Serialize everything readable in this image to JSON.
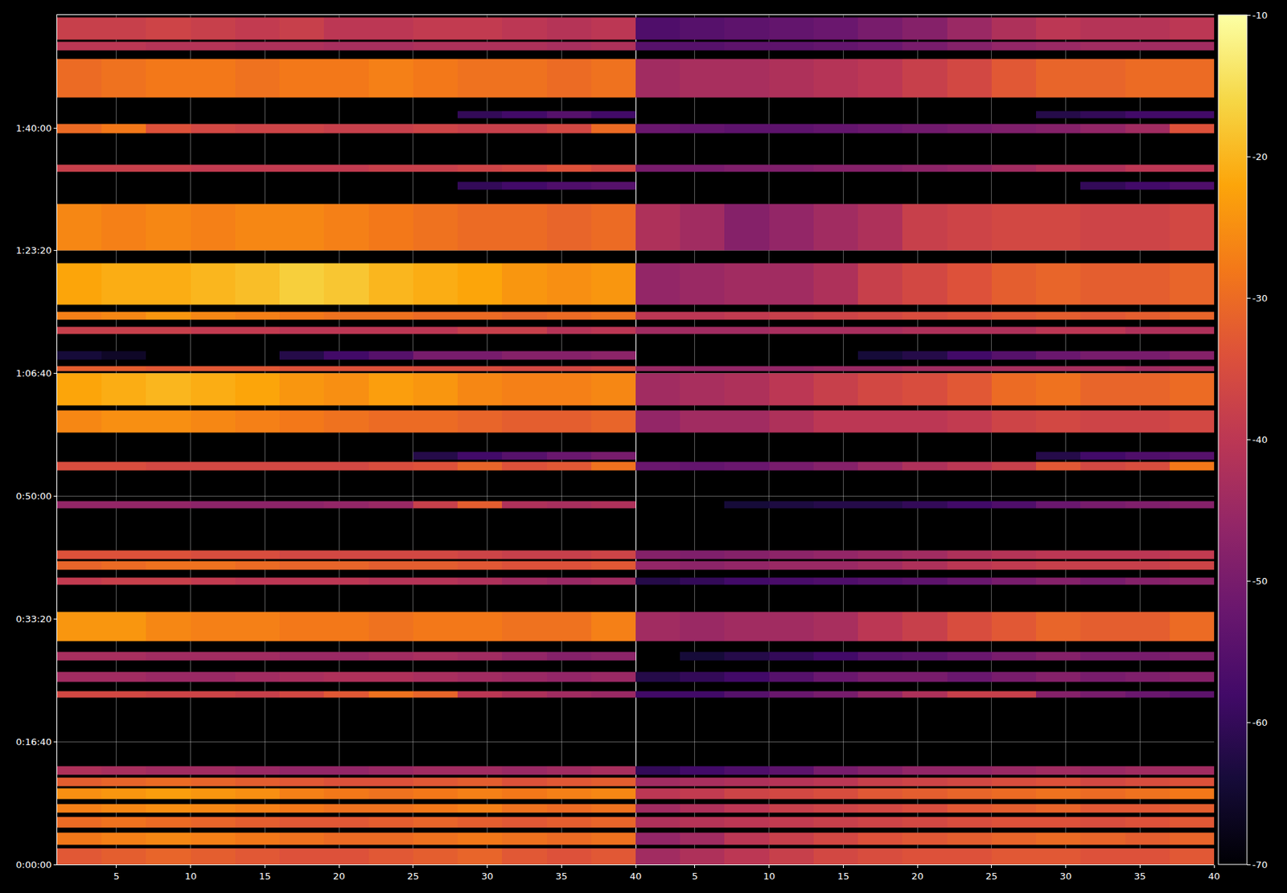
{
  "chart_data": {
    "type": "heatmap",
    "grid": true,
    "xlim": [
      1,
      40
    ],
    "xticks": [
      5,
      10,
      15,
      20,
      25,
      30,
      35,
      40
    ],
    "ylim": [
      0,
      6920
    ],
    "yticks": [
      {
        "value": 0,
        "label": "0:00:00"
      },
      {
        "value": 1000,
        "label": "0:16:40"
      },
      {
        "value": 2000,
        "label": "0:33:20"
      },
      {
        "value": 3000,
        "label": "0:50:00"
      },
      {
        "value": 4000,
        "label": "1:06:40"
      },
      {
        "value": 5000,
        "label": "1:23:20"
      },
      {
        "value": 6000,
        "label": "1:40:00"
      }
    ],
    "colorbar": {
      "range": [
        -70,
        -10
      ],
      "ticks": [
        -70,
        -60,
        -50,
        -40,
        -30,
        -20,
        -10
      ]
    },
    "column_edges": [
      1,
      4,
      7,
      10,
      13,
      16,
      19,
      22,
      25,
      28,
      31,
      34,
      37,
      40
    ],
    "rows": [
      {
        "time": [
          0,
          130
        ],
        "left": [
          -33,
          -32,
          -31,
          -32,
          -33,
          -34,
          -34,
          -33,
          -32,
          -31,
          -33,
          -34,
          -33
        ],
        "right": [
          -44,
          -42,
          -40,
          -38,
          -36,
          -35,
          -34,
          -34,
          -33,
          -33,
          -34,
          -34,
          -33
        ]
      },
      {
        "time": [
          160,
          260
        ],
        "left": [
          -28,
          -27,
          -26,
          -27,
          -28,
          -29,
          -30,
          -30,
          -29,
          -28,
          -29,
          -30,
          -29
        ],
        "right": [
          -46,
          -44,
          -40,
          -38,
          -36,
          -34,
          -33,
          -32,
          -31,
          -30,
          -31,
          -32,
          -31
        ]
      },
      {
        "time": [
          300,
          390
        ],
        "left": [
          -30,
          -29,
          -30,
          -31,
          -32,
          -33,
          -33,
          -32,
          -31,
          -32,
          -33,
          -32,
          -31
        ],
        "right": [
          -42,
          -41,
          -40,
          -39,
          -38,
          -37,
          -36,
          -35,
          -34,
          -34,
          -35,
          -34,
          -33
        ]
      },
      {
        "time": [
          420,
          490
        ],
        "left": [
          -27,
          -26,
          -25,
          -26,
          -27,
          -28,
          -29,
          -29,
          -28,
          -27,
          -29,
          -30,
          -29
        ],
        "right": [
          -44,
          -42,
          -40,
          -38,
          -37,
          -36,
          -35,
          -33,
          -32,
          -31,
          -33,
          -33,
          -32
        ]
      },
      {
        "time": [
          530,
          620
        ],
        "left": [
          -25,
          -24,
          -23,
          -24,
          -25,
          -27,
          -28,
          -29,
          -28,
          -27,
          -28,
          -27,
          -26
        ],
        "right": [
          -40,
          -39,
          -37,
          -36,
          -35,
          -33,
          -32,
          -31,
          -30,
          -29,
          -30,
          -29,
          -28
        ]
      },
      {
        "time": [
          640,
          710
        ],
        "left": [
          -32,
          -31,
          -30,
          -31,
          -32,
          -33,
          -34,
          -34,
          -33,
          -32,
          -34,
          -33,
          -32
        ],
        "right": [
          -44,
          -43,
          -42,
          -41,
          -40,
          -38,
          -37,
          -36,
          -35,
          -34,
          -36,
          -35,
          -34
        ]
      },
      {
        "time": [
          730,
          800
        ],
        "left": [
          -42,
          -43,
          -44,
          -44,
          -45,
          -46,
          -46,
          -45,
          -44,
          -44,
          -45,
          -44,
          -43
        ],
        "right": [
          -60,
          -58,
          -56,
          -54,
          -50,
          -48,
          -46,
          -46,
          -45,
          -44,
          -45,
          -44,
          -44
        ]
      },
      {
        "time": [
          1360,
          1410
        ],
        "left": [
          -36,
          -36,
          -37,
          -37,
          -38,
          -36,
          -33,
          -29,
          -31,
          -40,
          -42,
          -44,
          -45
        ],
        "right": [
          -58,
          -58,
          -55,
          -52,
          -50,
          -46,
          -42,
          -38,
          -38,
          -48,
          -50,
          -52,
          -54
        ]
      },
      {
        "time": [
          1490,
          1570
        ],
        "left": [
          -44,
          -44,
          -45,
          -45,
          -44,
          -43,
          -42,
          -42,
          -43,
          -44,
          -45,
          -46,
          -45
        ],
        "right": [
          -62,
          -60,
          -58,
          -55,
          -52,
          -50,
          -50,
          -52,
          -50,
          -48,
          -50,
          -49,
          -48
        ]
      },
      {
        "time": [
          1660,
          1730
        ],
        "left": [
          -43,
          -43,
          -44,
          -44,
          -44,
          -45,
          -45,
          -44,
          -43,
          -44,
          -46,
          -48,
          -47
        ],
        "right": [
          null,
          -64,
          -62,
          -60,
          -58,
          -55,
          -54,
          -52,
          -50,
          -48,
          -50,
          -50,
          -49
        ]
      },
      {
        "time": [
          1820,
          2060
        ],
        "left": [
          -24,
          -24,
          -26,
          -27,
          -27,
          -28,
          -28,
          -29,
          -28,
          -28,
          -29,
          -29,
          -27
        ],
        "right": [
          -44,
          -45,
          -44,
          -44,
          -43,
          -40,
          -38,
          -35,
          -33,
          -31,
          -32,
          -32,
          -30
        ]
      },
      {
        "time": [
          2280,
          2340
        ],
        "left": [
          -39,
          -38,
          -38,
          -39,
          -40,
          -40,
          -40,
          -41,
          -41,
          -42,
          -44,
          -45,
          -44
        ],
        "right": [
          -62,
          -60,
          -58,
          -57,
          -56,
          -55,
          -54,
          -52,
          -50,
          -48,
          -50,
          -48,
          -47
        ]
      },
      {
        "time": [
          2400,
          2470
        ],
        "left": [
          -31,
          -30,
          -29,
          -29,
          -30,
          -31,
          -31,
          -32,
          -32,
          -33,
          -34,
          -34,
          -33
        ],
        "right": [
          -46,
          -47,
          -46,
          -45,
          -45,
          -44,
          -42,
          -40,
          -39,
          -38,
          -38,
          -38,
          -37
        ]
      },
      {
        "time": [
          2490,
          2560
        ],
        "left": [
          -34,
          -34,
          -34,
          -35,
          -35,
          -36,
          -36,
          -36,
          -36,
          -37,
          -38,
          -38,
          -37
        ],
        "right": [
          -48,
          -49,
          -48,
          -47,
          -46,
          -45,
          -44,
          -42,
          -41,
          -40,
          -40,
          -40,
          -39
        ]
      },
      {
        "time": [
          2900,
          2960
        ],
        "left": [
          -46,
          -46,
          -46,
          -47,
          -47,
          -47,
          -46,
          -45,
          -38,
          -32,
          -42,
          -43,
          -42
        ],
        "right": [
          null,
          null,
          -64,
          -63,
          -62,
          -62,
          -60,
          -58,
          -56,
          -52,
          -50,
          -49,
          -48
        ]
      },
      {
        "time": [
          3210,
          3280
        ],
        "left": [
          -35,
          -35,
          -36,
          -36,
          -36,
          -36,
          -36,
          -35,
          -34,
          -31,
          -34,
          -33,
          -29
        ],
        "right": [
          -52,
          -53,
          -52,
          -50,
          -48,
          -45,
          -42,
          -40,
          -38,
          -33,
          -36,
          -35,
          -28
        ]
      },
      {
        "time": [
          3300,
          3360
        ],
        "left": [
          null,
          null,
          null,
          null,
          null,
          null,
          null,
          null,
          -62,
          -58,
          -55,
          -52,
          -50
        ],
        "right": [
          null,
          null,
          null,
          null,
          null,
          null,
          null,
          null,
          null,
          -62,
          -58,
          -56,
          -55
        ]
      },
      {
        "time": [
          3520,
          3700
        ],
        "left": [
          -26,
          -25,
          -25,
          -26,
          -27,
          -28,
          -29,
          -30,
          -30,
          -31,
          -32,
          -32,
          -31
        ],
        "right": [
          -46,
          -44,
          -44,
          -42,
          -40,
          -40,
          -40,
          -39,
          -37,
          -36,
          -37,
          -37,
          -36
        ]
      },
      {
        "time": [
          3740,
          4000
        ],
        "left": [
          -22,
          -21,
          -20,
          -21,
          -22,
          -24,
          -25,
          -23,
          -24,
          -26,
          -27,
          -27,
          -26
        ],
        "right": [
          -44,
          -43,
          -42,
          -40,
          -38,
          -36,
          -35,
          -33,
          -30,
          -29,
          -31,
          -31,
          -30
        ]
      },
      {
        "time": [
          4020,
          4060
        ],
        "left": [
          -32,
          -32,
          -33,
          -33,
          -33,
          -34,
          -34,
          -34,
          -35,
          -35,
          -36,
          -36,
          -35
        ],
        "right": [
          -45,
          -46,
          -46,
          -46,
          -45,
          -45,
          -44,
          -44,
          -43,
          -43,
          -43,
          -44,
          -43
        ]
      },
      {
        "time": [
          4110,
          4180
        ],
        "left": [
          -64,
          -66,
          null,
          null,
          null,
          -62,
          -58,
          -55,
          -50,
          -50,
          -48,
          -48,
          -47
        ],
        "right": [
          null,
          null,
          null,
          null,
          null,
          -64,
          -62,
          -58,
          -55,
          -52,
          -50,
          -50,
          -48
        ]
      },
      {
        "time": [
          4320,
          4380
        ],
        "left": [
          -38,
          -38,
          -38,
          -39,
          -39,
          -40,
          -40,
          -40,
          -40,
          -38,
          -38,
          -41,
          -40
        ],
        "right": [
          -44,
          -44,
          -44,
          -43,
          -43,
          -43,
          -42,
          -42,
          -42,
          -40,
          -40,
          -42,
          -42
        ]
      },
      {
        "time": [
          4440,
          4500
        ],
        "left": [
          -27,
          -26,
          -24,
          -26,
          -27,
          -28,
          -29,
          -29,
          -30,
          -30,
          -31,
          -30,
          -29
        ],
        "right": [
          -40,
          -40,
          -39,
          -38,
          -37,
          -36,
          -35,
          -34,
          -33,
          -32,
          -33,
          -32,
          -31
        ]
      },
      {
        "time": [
          4560,
          4900
        ],
        "left": [
          -22,
          -21,
          -21,
          -20,
          -19,
          -17,
          -18,
          -20,
          -21,
          -22,
          -24,
          -25,
          -24
        ],
        "right": [
          -46,
          -45,
          -44,
          -44,
          -42,
          -38,
          -36,
          -34,
          -32,
          -31,
          -32,
          -32,
          -31
        ]
      },
      {
        "time": [
          5000,
          5380
        ],
        "left": [
          -26,
          -27,
          -26,
          -27,
          -26,
          -26,
          -27,
          -28,
          -29,
          -30,
          -30,
          -31,
          -30
        ],
        "right": [
          -42,
          -44,
          -48,
          -46,
          -44,
          -42,
          -38,
          -37,
          -36,
          -36,
          -37,
          -37,
          -36
        ]
      },
      {
        "time": [
          5500,
          5560
        ],
        "left": [
          null,
          null,
          null,
          null,
          null,
          null,
          null,
          null,
          null,
          -60,
          -58,
          -56,
          -55
        ],
        "right": [
          null,
          null,
          null,
          null,
          null,
          null,
          null,
          null,
          null,
          null,
          -60,
          -58,
          -56
        ]
      },
      {
        "time": [
          5640,
          5700
        ],
        "left": [
          -38,
          -38,
          -38,
          -39,
          -39,
          -39,
          -39,
          -38,
          -38,
          -37,
          -36,
          -34,
          -36
        ],
        "right": [
          -50,
          -50,
          -49,
          -49,
          -48,
          -48,
          -47,
          -46,
          -44,
          -42,
          -42,
          -40,
          -40
        ]
      },
      {
        "time": [
          5960,
          6030
        ],
        "left": [
          -30,
          -28,
          -34,
          -36,
          -37,
          -37,
          -38,
          -38,
          -37,
          -38,
          -38,
          -36,
          -30
        ],
        "right": [
          -52,
          -53,
          -54,
          -54,
          -53,
          -52,
          -51,
          -50,
          -49,
          -48,
          -46,
          -44,
          -34
        ]
      },
      {
        "time": [
          6080,
          6140
        ],
        "left": [
          null,
          null,
          null,
          null,
          null,
          null,
          null,
          null,
          null,
          -60,
          -58,
          -55,
          -58
        ],
        "right": [
          null,
          null,
          null,
          null,
          null,
          null,
          null,
          null,
          null,
          -62,
          -60,
          -58,
          -58
        ]
      },
      {
        "time": [
          6250,
          6560
        ],
        "left": [
          -30,
          -29,
          -28,
          -28,
          -29,
          -28,
          -28,
          -27,
          -28,
          -29,
          -29,
          -30,
          -29
        ],
        "right": [
          -44,
          -43,
          -43,
          -42,
          -41,
          -40,
          -38,
          -36,
          -33,
          -31,
          -31,
          -30,
          -30
        ]
      },
      {
        "time": [
          6630,
          6700
        ],
        "left": [
          -40,
          -40,
          -41,
          -41,
          -42,
          -42,
          -43,
          -43,
          -42,
          -42,
          -42,
          -43,
          -42
        ],
        "right": [
          -55,
          -55,
          -54,
          -54,
          -53,
          -52,
          -50,
          -48,
          -46,
          -45,
          -44,
          -44,
          -44
        ]
      },
      {
        "time": [
          6720,
          6900
        ],
        "left": [
          -38,
          -38,
          -37,
          -38,
          -39,
          -38,
          -40,
          -40,
          -39,
          -39,
          -40,
          -41,
          -40
        ],
        "right": [
          -56,
          -55,
          -54,
          -53,
          -52,
          -50,
          -48,
          -45,
          -42,
          -40,
          -41,
          -41,
          -40
        ]
      }
    ]
  }
}
